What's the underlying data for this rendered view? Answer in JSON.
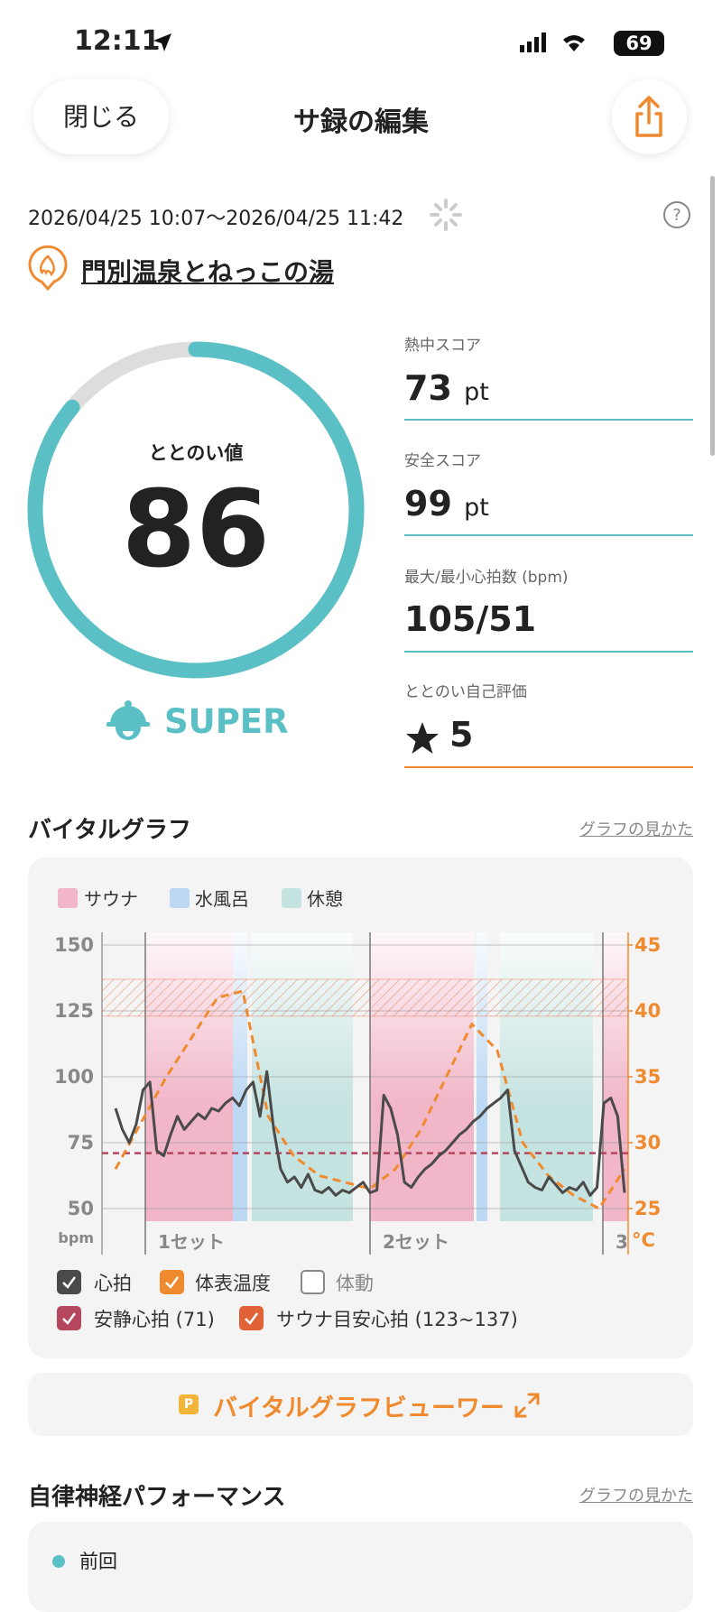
{
  "status_bar": {
    "time": "12:11",
    "battery": "69"
  },
  "nav": {
    "close": "閉じる",
    "title": "サ録の編集"
  },
  "session": {
    "period": "2026/04/25 10:07〜2026/04/25 11:42",
    "facility": "門別温泉とねっこの湯"
  },
  "totonoi": {
    "label": "ととのい値",
    "value": 86,
    "rank": "SUPER",
    "color": "#5bc0c6"
  },
  "stats": [
    {
      "label": "熱中スコア",
      "value": 73,
      "unit": "pt"
    },
    {
      "label": "安全スコア",
      "value": 99,
      "unit": "pt"
    },
    {
      "label": "最大/最小心拍数 (bpm)",
      "value": "105/51"
    },
    {
      "label": "ととのい自己評価",
      "value": 5
    }
  ],
  "vital_graph": {
    "title": "バイタルグラフ",
    "help_link": "グラフの見かた",
    "phases": [
      {
        "name": "サウナ",
        "color": "#f1b6c8"
      },
      {
        "name": "水風呂",
        "color": "#bcd8f3"
      },
      {
        "name": "休憩",
        "color": "#c5e3e1"
      }
    ],
    "ylim": [
      50,
      150
    ],
    "yticks": [
      50,
      75,
      100,
      125,
      150
    ],
    "y_unit": "bpm",
    "y2lim": [
      25,
      45
    ],
    "y2ticks": [
      25,
      30,
      35,
      40,
      45
    ],
    "y2_unit": "°C",
    "sets": [
      "1セット",
      "2セット",
      "3"
    ],
    "heart_rate": {
      "name": "心拍",
      "color": "#4a4a4a",
      "values": [
        88,
        80,
        75,
        82,
        95,
        98,
        72,
        70,
        78,
        85,
        80,
        83,
        86,
        84,
        88,
        87,
        90,
        92,
        89,
        95,
        98,
        85,
        102,
        80,
        65,
        60,
        62,
        58,
        63,
        57,
        56,
        58,
        55,
        57,
        56,
        58,
        60,
        56,
        57,
        93,
        88,
        78,
        60,
        58,
        62,
        65,
        67,
        70,
        72,
        75,
        78,
        80,
        83,
        85,
        88,
        90,
        92,
        95,
        72,
        66,
        60,
        58,
        57,
        62,
        59,
        56,
        58,
        57,
        60,
        55,
        58,
        90,
        92,
        85,
        56
      ]
    },
    "temperature": {
      "name": "体表温度",
      "color": "#f08a2e",
      "values": [
        28,
        31.5,
        35,
        38,
        41,
        41.5,
        32,
        29,
        27.5,
        27,
        26.5,
        28,
        31,
        35,
        39,
        37,
        30,
        27.5,
        26,
        25,
        28
      ]
    },
    "movement": {
      "name": "体動"
    },
    "resting_hr": {
      "name": "安静心拍 (71)",
      "value": 71,
      "color": "#b5475f"
    },
    "target_zone": {
      "name": "サウナ目安心拍 (123~137)",
      "range": [
        123,
        137
      ],
      "color": "#e06236"
    }
  },
  "viewer_button": {
    "badge": "P",
    "label": "バイタルグラフビューワー"
  },
  "autonomic": {
    "title": "自律神経パフォーマンス",
    "help_link": "グラフの見かた",
    "legend": "前回"
  }
}
